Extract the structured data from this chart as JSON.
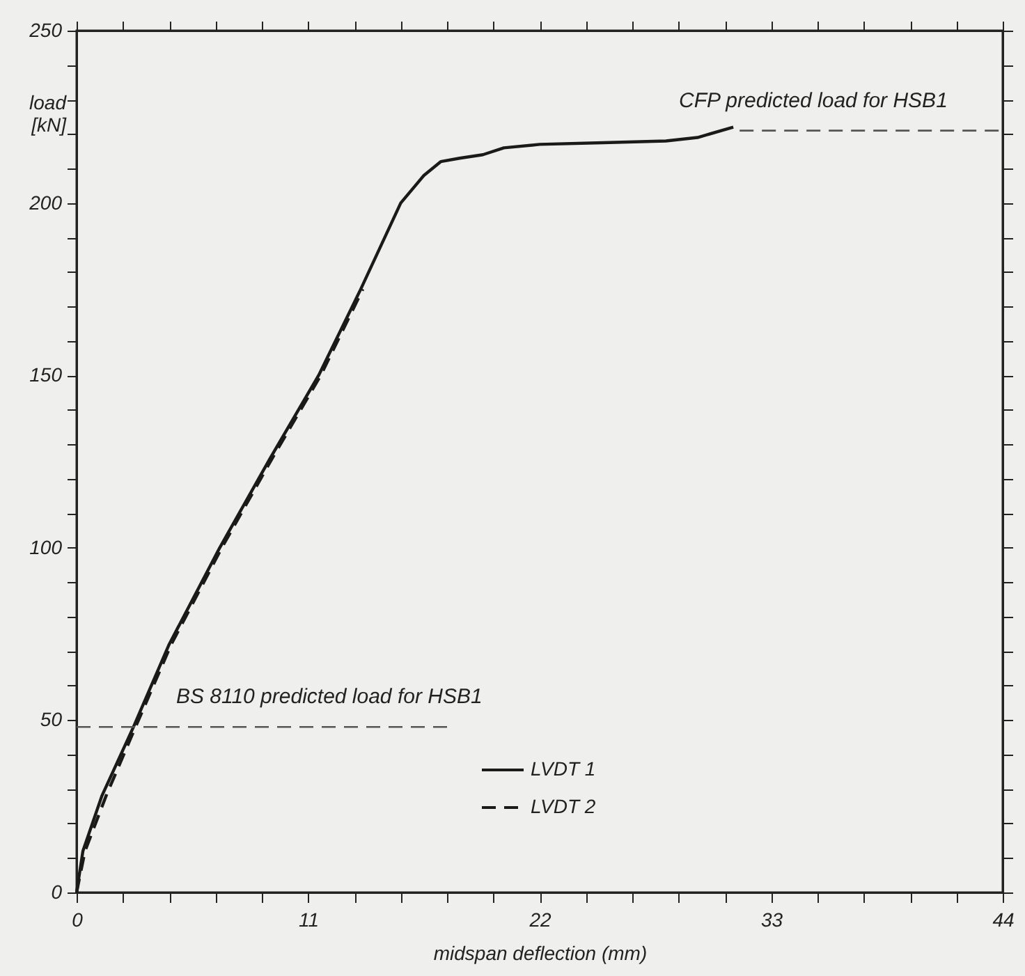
{
  "chart_data": {
    "type": "line",
    "xlabel": "midspan deflection (mm)",
    "ylabel": "load [kN]",
    "xlim": [
      0,
      44
    ],
    "ylim": [
      0,
      250
    ],
    "xticks": [
      0,
      {
        "value": 2.2,
        "label": null
      },
      {
        "value": 4.4,
        "label": null
      },
      {
        "value": 6.6,
        "label": null
      },
      {
        "value": 8.8,
        "label": null
      },
      11,
      {
        "value": 13.2,
        "label": null
      },
      {
        "value": 15.4,
        "label": null
      },
      {
        "value": 17.6,
        "label": null
      },
      {
        "value": 19.8,
        "label": null
      },
      22,
      {
        "value": 24.2,
        "label": null
      },
      {
        "value": 26.4,
        "label": null
      },
      {
        "value": 28.6,
        "label": null
      },
      {
        "value": 30.8,
        "label": null
      },
      33,
      {
        "value": 35.2,
        "label": null
      },
      {
        "value": 37.4,
        "label": null
      },
      {
        "value": 39.6,
        "label": null
      },
      {
        "value": 41.8,
        "label": null
      },
      44
    ],
    "yticks": [
      0,
      {
        "value": 10,
        "label": null
      },
      {
        "value": 20,
        "label": null
      },
      {
        "value": 30,
        "label": null
      },
      {
        "value": 40,
        "label": null
      },
      50,
      {
        "value": 60,
        "label": null
      },
      {
        "value": 70,
        "label": null
      },
      {
        "value": 80,
        "label": null
      },
      {
        "value": 90,
        "label": null
      },
      100,
      {
        "value": 110,
        "label": null
      },
      {
        "value": 120,
        "label": null
      },
      {
        "value": 130,
        "label": null
      },
      {
        "value": 140,
        "label": null
      },
      150,
      {
        "value": 160,
        "label": null
      },
      {
        "value": 170,
        "label": null
      },
      {
        "value": 180,
        "label": null
      },
      {
        "value": 190,
        "label": null
      },
      200,
      {
        "value": 210,
        "label": null
      },
      {
        "value": 220,
        "label": null
      },
      {
        "value": 230,
        "label": null
      },
      {
        "value": 240,
        "label": null
      },
      250
    ],
    "legend": "bottom",
    "series": [
      {
        "name": "LVDT 1",
        "color": "#1a1a1a",
        "line_style": "solid",
        "x": [
          0,
          0.3,
          1.2,
          2.7,
          4.4,
          6.8,
          9.2,
          11.5,
          13.5,
          15.4,
          16.5,
          17.3,
          18.2,
          19.3,
          20.3,
          22,
          25,
          28,
          29.5,
          31.2
        ],
        "values": [
          0,
          12,
          28,
          48,
          72,
          100,
          126,
          150,
          175,
          200,
          208,
          212,
          213,
          214,
          216,
          217,
          217.5,
          218,
          219,
          222
        ]
      },
      {
        "name": "LVDT 2",
        "color": "#1a1a1a",
        "line_style": "dashed",
        "x": [
          0,
          0.4,
          1.4,
          2.8,
          4.5,
          6.9,
          9.3,
          11.6,
          13.6
        ],
        "values": [
          0,
          12,
          28,
          48,
          72,
          100,
          126,
          150,
          175
        ]
      },
      {
        "color": "#555555",
        "line_style": "dashed",
        "x": [
          0,
          17.6
        ],
        "values": [
          48,
          48
        ]
      },
      {
        "color": "#555555",
        "line_style": "dashed",
        "x": [
          31.5,
          44
        ],
        "values": [
          221,
          221
        ]
      }
    ],
    "annotations": [
      {
        "text": "BS 8110 predicted load for HSB1",
        "x": 12,
        "y": 48
      },
      {
        "text": "CFP predicted load for HSB1",
        "x": 35,
        "y": 221
      }
    ]
  }
}
